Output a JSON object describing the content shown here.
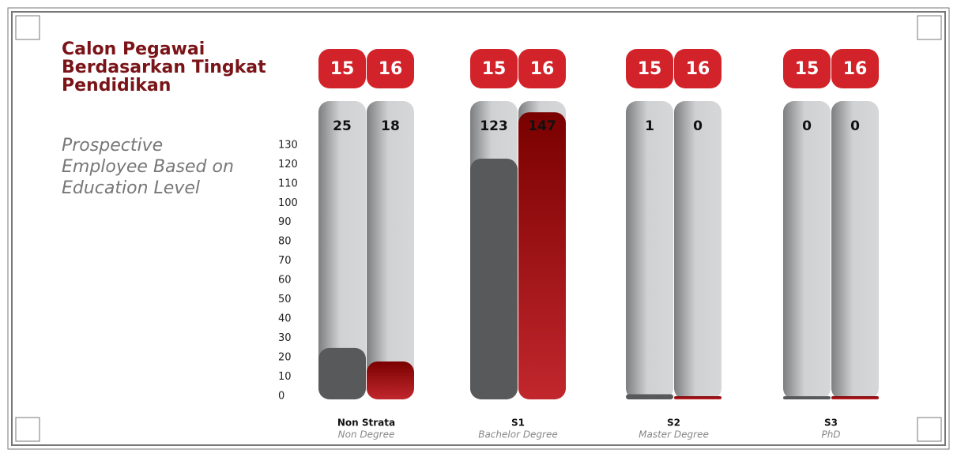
{
  "chart_data": {
    "type": "bar",
    "title": "Calon Pegawai Berdasarkan Tingkat Pendidikan",
    "subtitle": "Prospective Employee Based on Education Level",
    "categories": [
      "Non Strata",
      "S1",
      "S2",
      "S3"
    ],
    "category_subtitles": [
      "Non Degree",
      "Bachelor Degree",
      "Master Degree",
      "PhD"
    ],
    "series": [
      {
        "name": "15",
        "color": "#58595b",
        "values": [
          25,
          123,
          1,
          0
        ]
      },
      {
        "name": "16",
        "color": "#b51f27",
        "values": [
          18,
          147,
          0,
          0
        ]
      }
    ],
    "ylim": [
      0,
      152
    ],
    "yticks": [
      0,
      10,
      20,
      30,
      40,
      50,
      60,
      70,
      80,
      90,
      100,
      110,
      120,
      130
    ]
  }
}
